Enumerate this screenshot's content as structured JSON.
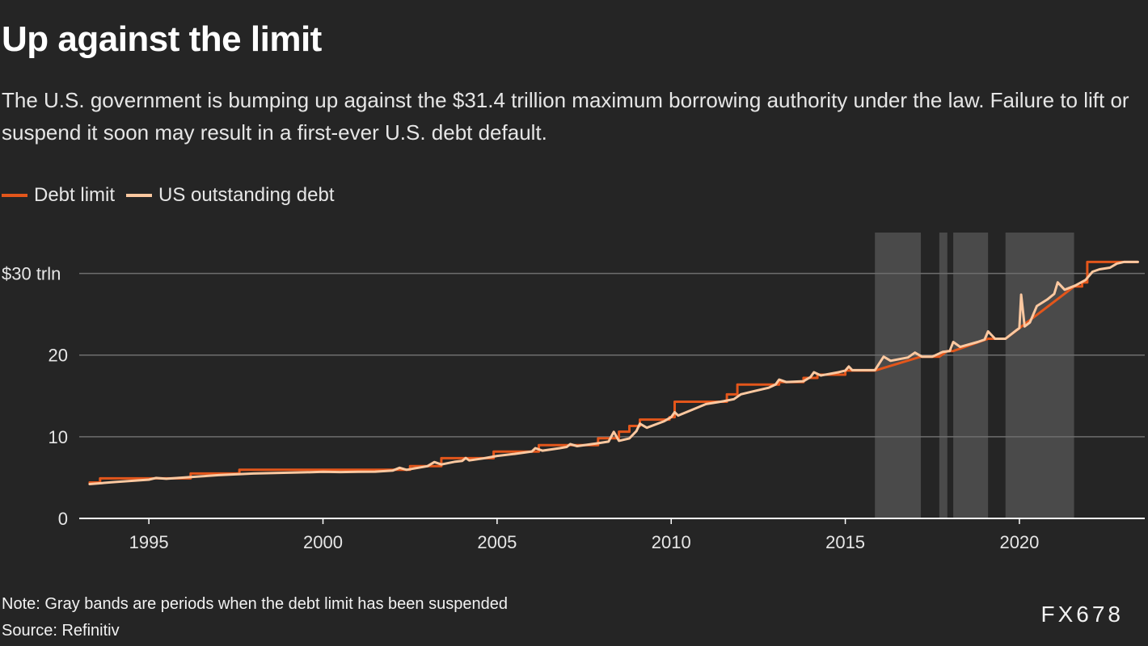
{
  "header": {
    "title": "Up against the limit",
    "subtitle": "The U.S. government is bumping up against the $31.4 trillion maximum borrowing authority under the law. Failure to lift or suspend it soon may result in a first-ever U.S. debt default."
  },
  "legend": {
    "items": [
      {
        "label": "Debt limit",
        "color": "#e3561b"
      },
      {
        "label": "US outstanding debt",
        "color": "#fcc8a0"
      }
    ]
  },
  "footer": {
    "note": "Note: Gray bands are periods when the debt limit has been suspended",
    "source": "Source: Refinitiv",
    "brand": "FX678"
  },
  "chart_data": {
    "type": "line",
    "xlabel": "",
    "ylabel": "",
    "xlim": [
      1993.0,
      2023.6
    ],
    "ylim": [
      0,
      35
    ],
    "grid": true,
    "legend_position": "top-left",
    "y_ticks": [
      {
        "value": 0,
        "label": "0"
      },
      {
        "value": 10,
        "label": "10"
      },
      {
        "value": 20,
        "label": "20"
      },
      {
        "value": 30,
        "label": "$30 trln"
      }
    ],
    "x_ticks": [
      {
        "value": 1995,
        "label": "1995"
      },
      {
        "value": 2000,
        "label": "2000"
      },
      {
        "value": 2005,
        "label": "2005"
      },
      {
        "value": 2010,
        "label": "2010"
      },
      {
        "value": 2015,
        "label": "2015"
      },
      {
        "value": 2020,
        "label": "2020"
      }
    ],
    "suspension_bands": [
      {
        "start": 2015.85,
        "end": 2017.17,
        "color": "#4a4a4a"
      },
      {
        "start": 2017.7,
        "end": 2017.93,
        "color": "#4a4a4a"
      },
      {
        "start": 2018.1,
        "end": 2019.1,
        "color": "#4a4a4a"
      },
      {
        "start": 2019.6,
        "end": 2021.57,
        "color": "#4a4a4a"
      }
    ],
    "series": [
      {
        "name": "Debt limit",
        "color": "#e3561b",
        "points": [
          [
            1993.3,
            4.4
          ],
          [
            1993.6,
            4.4
          ],
          [
            1993.6,
            4.9
          ],
          [
            1996.2,
            4.9
          ],
          [
            1996.2,
            5.5
          ],
          [
            1997.6,
            5.5
          ],
          [
            1997.6,
            5.95
          ],
          [
            2002.5,
            5.95
          ],
          [
            2002.5,
            6.4
          ],
          [
            2003.4,
            6.4
          ],
          [
            2003.4,
            7.38
          ],
          [
            2004.9,
            7.38
          ],
          [
            2004.9,
            8.18
          ],
          [
            2006.2,
            8.18
          ],
          [
            2006.2,
            8.97
          ],
          [
            2007.9,
            8.97
          ],
          [
            2007.9,
            9.82
          ],
          [
            2008.5,
            9.82
          ],
          [
            2008.5,
            10.62
          ],
          [
            2008.8,
            10.62
          ],
          [
            2008.8,
            11.32
          ],
          [
            2009.1,
            11.32
          ],
          [
            2009.1,
            12.1
          ],
          [
            2009.95,
            12.1
          ],
          [
            2009.95,
            12.4
          ],
          [
            2010.1,
            12.4
          ],
          [
            2010.1,
            14.29
          ],
          [
            2011.6,
            14.29
          ],
          [
            2011.6,
            15.19
          ],
          [
            2011.9,
            15.19
          ],
          [
            2011.9,
            16.39
          ],
          [
            2013.1,
            16.39
          ],
          [
            2013.1,
            16.7
          ],
          [
            2013.8,
            16.7
          ],
          [
            2013.8,
            17.2
          ],
          [
            2014.2,
            17.2
          ],
          [
            2014.2,
            17.6
          ],
          [
            2015.0,
            17.6
          ],
          [
            2015.0,
            18.1
          ],
          [
            2015.85,
            18.1
          ],
          [
            2017.17,
            19.8
          ],
          [
            2017.7,
            19.8
          ],
          [
            2017.93,
            20.5
          ],
          [
            2018.1,
            20.5
          ],
          [
            2019.1,
            22.0
          ],
          [
            2019.6,
            22.0
          ],
          [
            2021.57,
            28.4
          ],
          [
            2021.8,
            28.4
          ],
          [
            2021.8,
            28.9
          ],
          [
            2021.95,
            28.9
          ],
          [
            2021.95,
            31.4
          ],
          [
            2023.4,
            31.4
          ]
        ]
      },
      {
        "name": "US outstanding debt",
        "color": "#fcc8a0",
        "points": [
          [
            1993.3,
            4.2
          ],
          [
            1994.0,
            4.45
          ],
          [
            1994.5,
            4.6
          ],
          [
            1995.0,
            4.75
          ],
          [
            1995.2,
            4.95
          ],
          [
            1995.5,
            4.85
          ],
          [
            1996.0,
            5.0
          ],
          [
            1996.5,
            5.15
          ],
          [
            1997.0,
            5.3
          ],
          [
            1997.5,
            5.4
          ],
          [
            1998.0,
            5.5
          ],
          [
            1998.5,
            5.55
          ],
          [
            1999.0,
            5.6
          ],
          [
            1999.5,
            5.65
          ],
          [
            2000.0,
            5.7
          ],
          [
            2000.5,
            5.68
          ],
          [
            2001.0,
            5.7
          ],
          [
            2001.5,
            5.72
          ],
          [
            2002.0,
            5.85
          ],
          [
            2002.2,
            6.2
          ],
          [
            2002.4,
            5.95
          ],
          [
            2002.8,
            6.25
          ],
          [
            2003.0,
            6.4
          ],
          [
            2003.2,
            6.9
          ],
          [
            2003.4,
            6.6
          ],
          [
            2003.8,
            6.95
          ],
          [
            2004.0,
            7.05
          ],
          [
            2004.1,
            7.4
          ],
          [
            2004.2,
            7.1
          ],
          [
            2004.6,
            7.35
          ],
          [
            2005.0,
            7.65
          ],
          [
            2005.5,
            7.9
          ],
          [
            2006.0,
            8.2
          ],
          [
            2006.1,
            8.6
          ],
          [
            2006.3,
            8.3
          ],
          [
            2006.8,
            8.6
          ],
          [
            2007.0,
            8.75
          ],
          [
            2007.1,
            9.1
          ],
          [
            2007.3,
            8.85
          ],
          [
            2007.9,
            9.2
          ],
          [
            2008.2,
            9.4
          ],
          [
            2008.35,
            10.6
          ],
          [
            2008.5,
            9.5
          ],
          [
            2008.8,
            9.8
          ],
          [
            2009.0,
            10.7
          ],
          [
            2009.1,
            11.6
          ],
          [
            2009.3,
            11.1
          ],
          [
            2009.8,
            11.9
          ],
          [
            2010.0,
            12.4
          ],
          [
            2010.1,
            13.0
          ],
          [
            2010.2,
            12.6
          ],
          [
            2010.6,
            13.3
          ],
          [
            2011.0,
            14.0
          ],
          [
            2011.5,
            14.35
          ],
          [
            2011.8,
            14.6
          ],
          [
            2012.0,
            15.2
          ],
          [
            2012.4,
            15.6
          ],
          [
            2012.8,
            16.0
          ],
          [
            2013.0,
            16.4
          ],
          [
            2013.1,
            17.0
          ],
          [
            2013.3,
            16.7
          ],
          [
            2013.8,
            16.8
          ],
          [
            2014.0,
            17.3
          ],
          [
            2014.1,
            17.9
          ],
          [
            2014.3,
            17.5
          ],
          [
            2014.8,
            17.9
          ],
          [
            2015.0,
            18.1
          ],
          [
            2015.1,
            18.6
          ],
          [
            2015.2,
            18.15
          ],
          [
            2015.85,
            18.15
          ],
          [
            2016.1,
            19.8
          ],
          [
            2016.3,
            19.3
          ],
          [
            2016.8,
            19.7
          ],
          [
            2017.0,
            20.3
          ],
          [
            2017.2,
            19.8
          ],
          [
            2017.5,
            19.8
          ],
          [
            2017.8,
            20.4
          ],
          [
            2018.0,
            20.5
          ],
          [
            2018.1,
            21.6
          ],
          [
            2018.3,
            21.0
          ],
          [
            2018.8,
            21.6
          ],
          [
            2019.0,
            21.9
          ],
          [
            2019.1,
            22.9
          ],
          [
            2019.3,
            22.0
          ],
          [
            2019.6,
            22.0
          ],
          [
            2019.9,
            23.0
          ],
          [
            2020.0,
            23.3
          ],
          [
            2020.05,
            27.4
          ],
          [
            2020.15,
            23.5
          ],
          [
            2020.3,
            24.0
          ],
          [
            2020.5,
            26.0
          ],
          [
            2020.8,
            26.8
          ],
          [
            2021.0,
            27.5
          ],
          [
            2021.1,
            28.9
          ],
          [
            2021.3,
            28.0
          ],
          [
            2021.6,
            28.5
          ],
          [
            2021.9,
            29.2
          ],
          [
            2022.1,
            30.2
          ],
          [
            2022.3,
            30.5
          ],
          [
            2022.6,
            30.7
          ],
          [
            2022.8,
            31.2
          ],
          [
            2023.0,
            31.4
          ],
          [
            2023.4,
            31.4
          ]
        ]
      }
    ]
  }
}
